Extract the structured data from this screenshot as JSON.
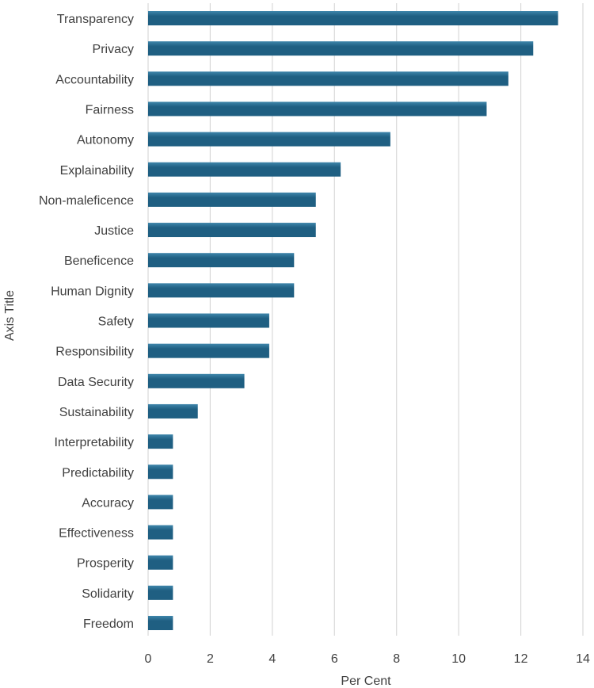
{
  "chart_data": {
    "type": "bar",
    "orientation": "horizontal",
    "title": "",
    "xlabel": "Per Cent",
    "ylabel": "Axis Title",
    "xlim": [
      0,
      14
    ],
    "xticks": [
      0,
      2,
      4,
      6,
      8,
      10,
      12,
      14
    ],
    "grid": true,
    "legend": "none",
    "bar_color": "#1F5F82",
    "bar_highlight_color": "#3F86AB",
    "categories": [
      "Transparency",
      "Privacy",
      "Accountability",
      "Fairness",
      "Autonomy",
      "Explainability",
      "Non-maleficence",
      "Justice",
      "Beneficence",
      "Human Dignity",
      "Safety",
      "Responsibility",
      "Data Security",
      "Sustainability",
      "Interpretability",
      "Predictability",
      "Accuracy",
      "Effectiveness",
      "Prosperity",
      "Solidarity",
      "Freedom"
    ],
    "values": [
      13.2,
      12.4,
      11.6,
      10.9,
      7.8,
      6.2,
      5.4,
      5.4,
      4.7,
      4.7,
      3.9,
      3.9,
      3.1,
      1.6,
      0.8,
      0.8,
      0.8,
      0.8,
      0.8,
      0.8,
      0.8
    ]
  }
}
